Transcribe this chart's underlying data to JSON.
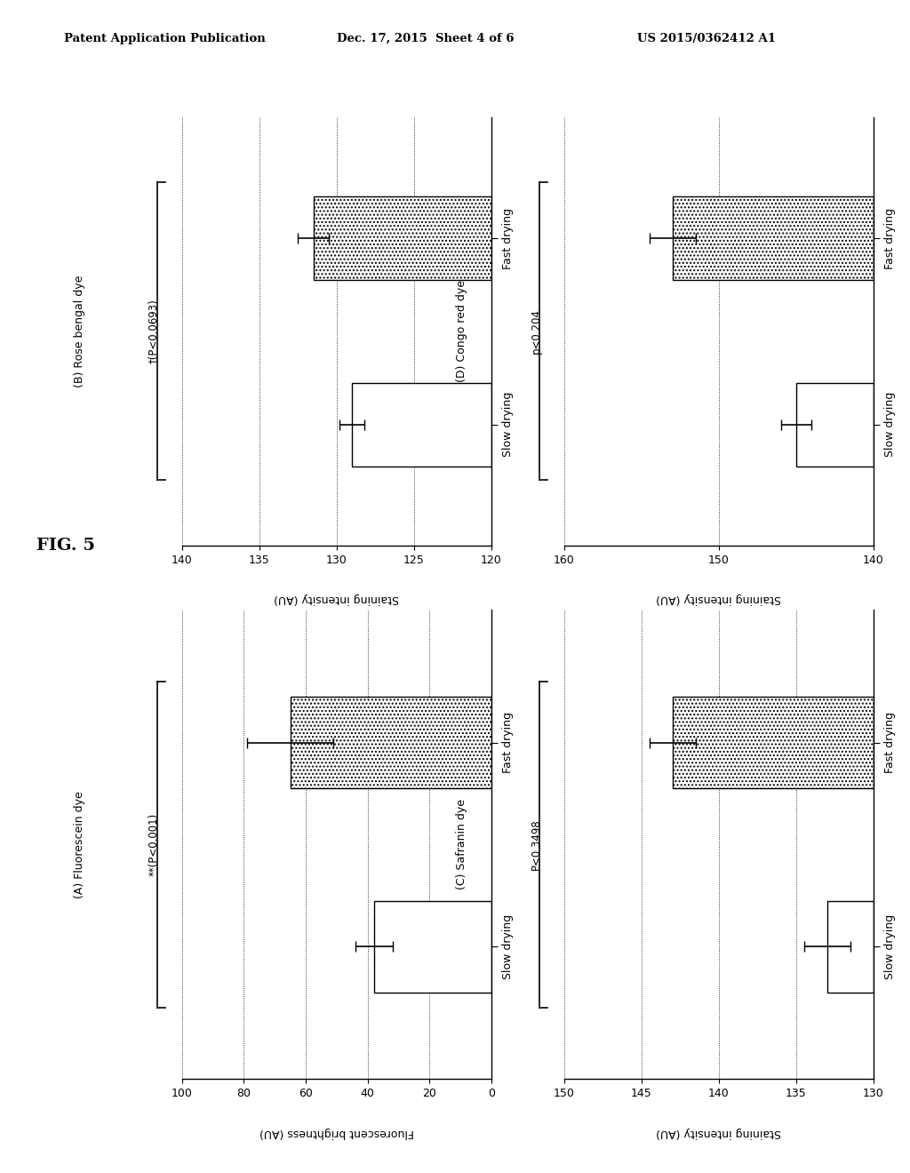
{
  "header_left": "Patent Application Publication",
  "header_center": "Dec. 17, 2015  Sheet 4 of 6",
  "header_right": "US 2015/0362412 A1",
  "fig_label": "FIG. 5",
  "panels": [
    {
      "id": "B",
      "label": "(B) Rose bengal dye",
      "ylabel": "Staining intensity (AU)",
      "xlim": [
        120,
        140
      ],
      "xticks": [
        120,
        125,
        130,
        135,
        140
      ],
      "slow_val": 129.0,
      "slow_err": 0.8,
      "fast_val": 131.5,
      "fast_err": 1.0,
      "stat_text": "†(P<0.0693)",
      "row": 0,
      "col": 0
    },
    {
      "id": "D",
      "label": "(D) Congo red dye",
      "ylabel": "Staining intensity (AU)",
      "xlim": [
        140,
        160
      ],
      "xticks": [
        140,
        150,
        160
      ],
      "slow_val": 145.0,
      "slow_err": 1.0,
      "fast_val": 153.0,
      "fast_err": 1.5,
      "stat_text": "p<0.204",
      "row": 0,
      "col": 1
    },
    {
      "id": "A",
      "label": "(A) Fluorescein dye",
      "ylabel": "Fluorescent brightness (AU)",
      "xlim": [
        0,
        100
      ],
      "xticks": [
        0,
        20,
        40,
        60,
        80,
        100
      ],
      "slow_val": 38.0,
      "slow_err": 6.0,
      "fast_val": 65.0,
      "fast_err": 14.0,
      "stat_text": "**(P<0.001)",
      "row": 1,
      "col": 0
    },
    {
      "id": "C",
      "label": "(C) Safranin dye",
      "ylabel": "Staining intensity (AU)",
      "xlim": [
        130,
        150
      ],
      "xticks": [
        130,
        135,
        140,
        145,
        150
      ],
      "slow_val": 133.0,
      "slow_err": 1.5,
      "fast_val": 143.0,
      "fast_err": 1.5,
      "stat_text": "P<0.3498",
      "row": 1,
      "col": 1
    }
  ],
  "background_color": "white"
}
